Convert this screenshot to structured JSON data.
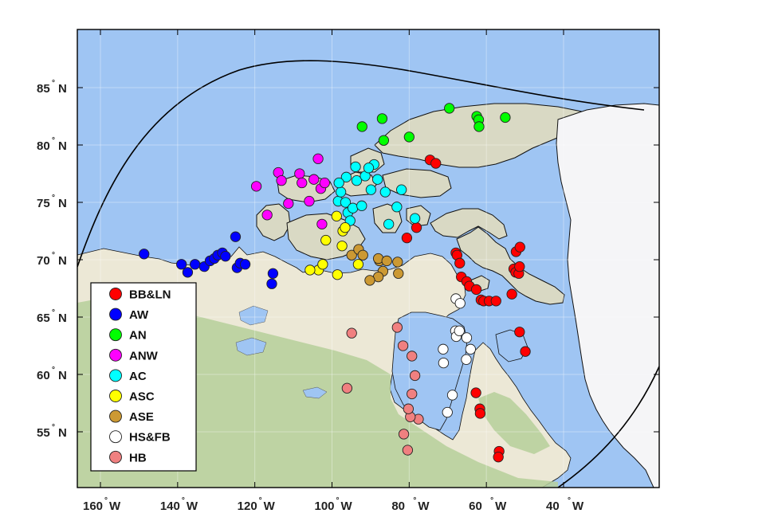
{
  "map": {
    "colors": {
      "ocean": "#9fc5f3",
      "land_light": "#ece8d6",
      "land_tundra": "#d9d9c4",
      "vegetation": "#b6cf9a",
      "greenland": "#f5f5f7",
      "coast": "#111111",
      "frame": "#000000"
    },
    "lon_ticks": [
      {
        "value": -160,
        "label": "160",
        "suffix": "W"
      },
      {
        "value": -140,
        "label": "140",
        "suffix": "W"
      },
      {
        "value": -120,
        "label": "120",
        "suffix": "W"
      },
      {
        "value": -100,
        "label": "100",
        "suffix": "W"
      },
      {
        "value": -80,
        "label": "80",
        "suffix": "W"
      },
      {
        "value": -60,
        "label": "60",
        "suffix": "W"
      },
      {
        "value": -40,
        "label": "40",
        "suffix": "W"
      }
    ],
    "lat_ticks": [
      {
        "value": 85,
        "label": "85",
        "suffix": "N"
      },
      {
        "value": 80,
        "label": "80",
        "suffix": "N"
      },
      {
        "value": 75,
        "label": "75",
        "suffix": "N"
      },
      {
        "value": 70,
        "label": "70",
        "suffix": "N"
      },
      {
        "value": 65,
        "label": "65",
        "suffix": "N"
      },
      {
        "value": 60,
        "label": "60",
        "suffix": "N"
      },
      {
        "value": 55,
        "label": "55",
        "suffix": "N"
      }
    ],
    "extent": {
      "lon": [
        -165,
        -36
      ],
      "lat": [
        50.1,
        89.1
      ]
    }
  },
  "legend": [
    {
      "key": "BB&LN",
      "label": "BB&LN",
      "color": "#ff0000"
    },
    {
      "key": "AW",
      "label": "AW",
      "color": "#0000ff"
    },
    {
      "key": "AN",
      "label": "AN",
      "color": "#00ff00"
    },
    {
      "key": "ANW",
      "label": "ANW",
      "color": "#ff00ff"
    },
    {
      "key": "AC",
      "label": "AC",
      "color": "#00ffff"
    },
    {
      "key": "ASC",
      "label": "ASC",
      "color": "#ffff00"
    },
    {
      "key": "ASE",
      "label": "ASE",
      "color": "#cc9933"
    },
    {
      "key": "HS&FB",
      "label": "HS&FB",
      "color": "#ffffff"
    },
    {
      "key": "HB",
      "label": "HB",
      "color": "#f08080"
    }
  ],
  "stations": {
    "BB&LN": [
      [
        -80.6,
        71.9
      ],
      [
        -78.1,
        72.8
      ],
      [
        -74.6,
        78.7
      ],
      [
        -73.1,
        78.4
      ],
      [
        -67.9,
        70.6
      ],
      [
        -67.6,
        70.4
      ],
      [
        -66.9,
        69.7
      ],
      [
        -66.5,
        68.5
      ],
      [
        -65.1,
        68.1
      ],
      [
        -64.4,
        67.7
      ],
      [
        -62.6,
        67.4
      ],
      [
        -61.4,
        66.5
      ],
      [
        -60.7,
        66.4
      ],
      [
        -59.3,
        66.4
      ],
      [
        -57.5,
        66.4
      ],
      [
        -53.4,
        67.0
      ],
      [
        -52.9,
        69.2
      ],
      [
        -52.4,
        68.9
      ],
      [
        -51.6,
        68.8
      ],
      [
        -51.4,
        69.4
      ],
      [
        -52.3,
        70.7
      ],
      [
        -51.3,
        71.1
      ],
      [
        -51.4,
        63.7
      ],
      [
        -49.9,
        62.0
      ],
      [
        -62.7,
        58.4
      ],
      [
        -61.7,
        57.0
      ],
      [
        -61.6,
        56.6
      ],
      [
        -56.7,
        53.3
      ],
      [
        -56.9,
        52.8
      ]
    ],
    "AW": [
      [
        -148.7,
        70.5
      ],
      [
        -139.0,
        69.6
      ],
      [
        -137.4,
        68.9
      ],
      [
        -135.5,
        69.6
      ],
      [
        -133.1,
        69.4
      ],
      [
        -131.6,
        69.9
      ],
      [
        -130.5,
        70.1
      ],
      [
        -129.6,
        70.4
      ],
      [
        -128.4,
        70.6
      ],
      [
        -127.6,
        70.3
      ],
      [
        -124.6,
        69.3
      ],
      [
        -123.8,
        69.7
      ],
      [
        -122.5,
        69.6
      ],
      [
        -125.0,
        72.0
      ],
      [
        -115.3,
        68.8
      ],
      [
        -115.6,
        67.9
      ]
    ],
    "AN": [
      [
        -92.2,
        81.6
      ],
      [
        -87.0,
        82.3
      ],
      [
        -86.6,
        80.4
      ],
      [
        -80.0,
        80.7
      ],
      [
        -69.6,
        83.2
      ],
      [
        -62.5,
        82.5
      ],
      [
        -62.0,
        82.2
      ],
      [
        -61.9,
        81.6
      ],
      [
        -55.1,
        82.4
      ]
    ],
    "ANW": [
      [
        -119.6,
        76.4
      ],
      [
        -116.8,
        73.9
      ],
      [
        -113.9,
        77.6
      ],
      [
        -113.1,
        76.9
      ],
      [
        -111.3,
        74.9
      ],
      [
        -108.4,
        77.5
      ],
      [
        -107.8,
        76.7
      ],
      [
        -105.9,
        75.1
      ],
      [
        -104.7,
        77.0
      ],
      [
        -103.6,
        78.8
      ],
      [
        -102.6,
        73.1
      ],
      [
        -102.9,
        76.2
      ],
      [
        -101.9,
        76.7
      ]
    ],
    "AC": [
      [
        -98.4,
        75.1
      ],
      [
        -97.7,
        75.9
      ],
      [
        -96.5,
        75.0
      ],
      [
        -96.3,
        77.2
      ],
      [
        -95.9,
        74.1
      ],
      [
        -95.3,
        73.4
      ],
      [
        -94.6,
        74.5
      ],
      [
        -93.6,
        76.9
      ],
      [
        -93.9,
        78.1
      ],
      [
        -92.3,
        74.7
      ],
      [
        -91.4,
        77.3
      ],
      [
        -89.9,
        76.1
      ],
      [
        -89.1,
        78.3
      ],
      [
        -88.2,
        77.0
      ],
      [
        -86.2,
        75.9
      ],
      [
        -85.3,
        73.1
      ],
      [
        -83.2,
        74.6
      ],
      [
        -82.0,
        76.1
      ],
      [
        -78.5,
        73.6
      ],
      [
        -98.2,
        76.7
      ],
      [
        -90.5,
        78.0
      ]
    ],
    "ASC": [
      [
        -97.2,
        72.5
      ],
      [
        -96.6,
        72.8
      ],
      [
        -98.8,
        73.8
      ],
      [
        -101.6,
        71.7
      ],
      [
        -97.4,
        71.2
      ],
      [
        -93.2,
        69.6
      ],
      [
        -98.6,
        68.7
      ],
      [
        -103.5,
        69.1
      ],
      [
        -102.4,
        69.6
      ],
      [
        -105.7,
        69.1
      ]
    ],
    "ASE": [
      [
        -94.9,
        70.4
      ],
      [
        -93.1,
        70.9
      ],
      [
        -92.0,
        70.4
      ],
      [
        -87.7,
        69.9
      ],
      [
        -88.0,
        70.1
      ],
      [
        -85.8,
        69.9
      ],
      [
        -83.0,
        69.8
      ],
      [
        -82.8,
        68.8
      ],
      [
        -86.8,
        69.0
      ],
      [
        -88.0,
        68.5
      ],
      [
        -90.2,
        68.2
      ]
    ],
    "HS&FB": [
      [
        -67.9,
        66.6
      ],
      [
        -66.8,
        66.2
      ],
      [
        -68.0,
        63.8
      ],
      [
        -67.8,
        63.3
      ],
      [
        -67.0,
        63.8
      ],
      [
        -65.1,
        63.2
      ],
      [
        -64.1,
        62.2
      ],
      [
        -65.2,
        61.3
      ],
      [
        -71.2,
        62.2
      ],
      [
        -71.1,
        61.0
      ],
      [
        -68.8,
        58.2
      ],
      [
        -70.1,
        56.7
      ]
    ],
    "HB": [
      [
        -94.9,
        63.6
      ],
      [
        -83.1,
        64.1
      ],
      [
        -81.6,
        62.5
      ],
      [
        -79.3,
        61.6
      ],
      [
        -78.5,
        59.9
      ],
      [
        -79.3,
        58.3
      ],
      [
        -77.6,
        56.1
      ],
      [
        -79.7,
        56.3
      ],
      [
        -80.2,
        57.0
      ],
      [
        -81.4,
        54.8
      ],
      [
        -80.4,
        53.4
      ],
      [
        -96.1,
        58.8
      ]
    ]
  }
}
